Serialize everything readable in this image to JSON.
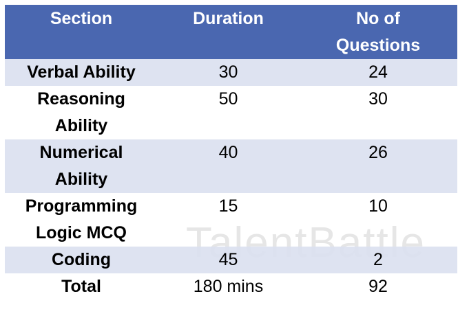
{
  "table": {
    "header": [
      "Section",
      "Duration",
      "No of Questions"
    ],
    "rows": [
      [
        "Verbal Ability",
        "30",
        "24"
      ],
      [
        "Reasoning Ability",
        "50",
        "30"
      ],
      [
        "Numerical Ability",
        "40",
        "26"
      ],
      [
        "Programming Logic MCQ",
        "15",
        "10"
      ],
      [
        "Coding",
        "45",
        "2"
      ],
      [
        "Total",
        "180 mins",
        "92"
      ]
    ]
  },
  "watermark": "TalentBattle"
}
